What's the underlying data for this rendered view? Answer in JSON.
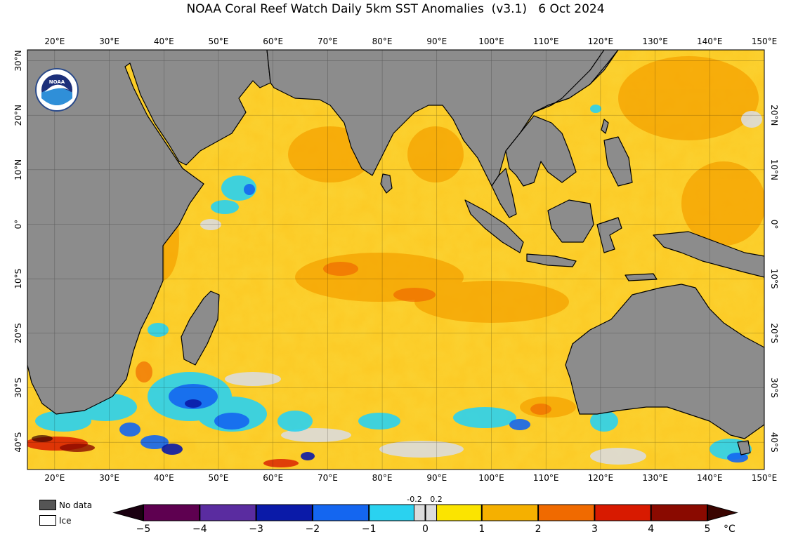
{
  "title": "NOAA Coral Reef Watch Daily 5km SST Anomalies  (v3.1)   6 Oct 2024",
  "logo_text": "NOAA",
  "map": {
    "lon_range": [
      15,
      150
    ],
    "lat_range": [
      -45,
      32
    ],
    "lon_labels": [
      "20°E",
      "30°E",
      "40°E",
      "50°E",
      "60°E",
      "70°E",
      "80°E",
      "90°E",
      "100°E",
      "110°E",
      "120°E",
      "130°E",
      "140°E",
      "150°E"
    ],
    "lat_labels_left": [
      "30°N",
      "20°N",
      "10°N",
      "0°",
      "10°S",
      "20°S",
      "30°S",
      "40°S"
    ],
    "lat_labels_right": [
      "20°N",
      "10°N",
      "0°",
      "10°S",
      "20°S",
      "30°S",
      "40°S"
    ],
    "land_color": "#8c8c8c",
    "ocean_base_color": "#fbd232"
  },
  "legend": {
    "no_data_label": "No data",
    "no_data_color": "#555555",
    "ice_label": "Ice",
    "ice_color": "#ffffff"
  },
  "colorbar": {
    "ticks": [
      "−5",
      "−4",
      "−3",
      "−2",
      "−1",
      "0",
      "1",
      "2",
      "3",
      "4",
      "5"
    ],
    "small_ticks": [
      "-0.2",
      "0.2"
    ],
    "unit": "°C",
    "range": [
      -5,
      5
    ],
    "colors": {
      "min_extend": "#1a0010",
      "band_-5_-4": "#5e0050",
      "band_-4_-3": "#5a2ca0",
      "band_-3_-2": "#0a1aa8",
      "band_-2_-1": "#1466f0",
      "band_-1_-0.2": "#2ad2f0",
      "band_-0.2_0.2": "#dcdcdc",
      "band_0.2_1": "#fbe400",
      "band_1_2": "#f5b000",
      "band_2_3": "#f06a00",
      "band_3_4": "#d81a00",
      "band_4_5": "#8a0a00",
      "max_extend": "#3a0400"
    }
  }
}
